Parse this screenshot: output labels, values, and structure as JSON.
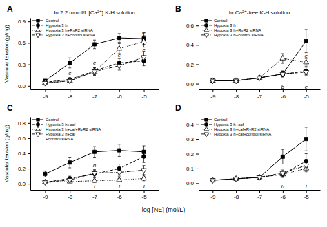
{
  "chart_data": [
    {
      "type": "line",
      "title": "In 2.2 mmol/L [Ca²⁺] K-H solution",
      "ylabel": "Vascular tension (g/mg)",
      "color": "black",
      "x": [
        -9,
        -8,
        -7,
        -6,
        -5
      ],
      "xlim": [
        -9.6,
        -4.4
      ],
      "xticks": [
        -9,
        -8,
        -7,
        -6,
        -5
      ],
      "ylim": [
        -0.05,
        0.95
      ],
      "yticks": [
        {
          "value": 0.0,
          "label": "0.0"
        },
        0.3,
        0.6,
        0.9
      ],
      "grid": false,
      "legend": "top-left",
      "series": [
        {
          "name": "Control",
          "values": [
            0.07,
            0.32,
            0.58,
            0.67,
            0.66
          ],
          "yerr": [
            0.02,
            0.07,
            0.06,
            0.06,
            0.08
          ],
          "marker": "square",
          "line_style": "solid"
        },
        {
          "name": "Hypoxia 3 h",
          "values": [
            0.05,
            0.09,
            0.21,
            0.32,
            0.35
          ],
          "yerr": [
            0.01,
            0.02,
            0.05,
            0.06,
            0.07
          ],
          "marker": "circle",
          "line_style": "dashed"
        },
        {
          "name": "Hypoxia 3 h+RyR2 siRNA",
          "values": [
            0.04,
            0.07,
            0.2,
            0.52,
            0.62
          ],
          "yerr": [
            0.01,
            0.01,
            0.05,
            0.07,
            0.08
          ],
          "marker": "triangle-up-open",
          "line_style": "dotted"
        },
        {
          "name": "Hypoxia 3 h+control siRNA",
          "values": [
            0.04,
            0.07,
            0.2,
            0.28,
            0.4
          ],
          "yerr": [
            0.01,
            0.01,
            0.05,
            0.06,
            0.08
          ],
          "marker": "triangle-down-open",
          "line_style": "dashdot"
        }
      ],
      "annotations": [
        {
          "text": "A"
        },
        {
          "text": "c",
          "xy": [
            -8,
            0.15
          ]
        },
        {
          "text": "c",
          "xy": [
            -7,
            0.3
          ]
        },
        {
          "text": "e",
          "xy": [
            -6,
            0.64
          ]
        },
        {
          "text": "e",
          "xy": [
            -5,
            0.72
          ]
        },
        {
          "text": "c",
          "xy": [
            -6,
            0.4
          ]
        },
        {
          "text": "c",
          "xy": [
            -5,
            0.48
          ]
        }
      ]
    },
    {
      "type": "line",
      "title": "In Ca²⁺-free K-H solution",
      "color": "black",
      "x": [
        -9,
        -8,
        -7,
        -6,
        -5
      ],
      "xlim": [
        -9.6,
        -4.4
      ],
      "xticks": [
        -9,
        -8,
        -7,
        -6,
        -5
      ],
      "ylim": [
        -0.06,
        0.68
      ],
      "yticks": [
        {
          "value": 0.0,
          "label": "0.0"
        },
        0.2,
        0.4,
        0.6
      ],
      "grid": false,
      "legend": "top-left",
      "series": [
        {
          "name": "Control",
          "values": [
            0.03,
            0.03,
            0.06,
            0.1,
            0.44
          ],
          "yerr": [
            0.01,
            0.01,
            0.02,
            0.03,
            0.12
          ],
          "marker": "square",
          "line_style": "solid"
        },
        {
          "name": "Hypoxia 3 h",
          "values": [
            0.03,
            0.03,
            0.06,
            0.1,
            0.13
          ],
          "yerr": [
            0.01,
            0.01,
            0.02,
            0.03,
            0.04
          ],
          "marker": "circle",
          "line_style": "dashed"
        },
        {
          "name": "Hypoxia 3 h+RyR2 siRNA",
          "values": [
            0.03,
            0.03,
            0.06,
            0.26,
            0.22
          ],
          "yerr": [
            0.01,
            0.01,
            0.02,
            0.05,
            0.04
          ],
          "marker": "triangle-up-open",
          "line_style": "dotted"
        },
        {
          "name": "Hypoxia 3 h+control siRNA",
          "values": [
            0.03,
            0.03,
            0.06,
            0.1,
            0.12
          ],
          "yerr": [
            0.01,
            0.01,
            0.02,
            0.03,
            0.03
          ],
          "marker": "triangle-down-open",
          "line_style": "dashdot"
        }
      ],
      "annotations": [
        {
          "text": "B"
        },
        {
          "text": "b",
          "xy": [
            -6,
            -0.05
          ]
        },
        {
          "text": "c",
          "xy": [
            -5,
            -0.05
          ]
        },
        {
          "text": "e",
          "xy": [
            -5,
            0.27
          ]
        }
      ]
    },
    {
      "type": "line",
      "ylabel": "Vascular tension (g/mg)",
      "xlabel": "log [NE] (mol/L)",
      "color": "black",
      "x": [
        -9,
        -8,
        -7,
        -6,
        -5
      ],
      "xlim": [
        -9.6,
        -4.4
      ],
      "xticks": [
        -9,
        -8,
        -7,
        -6,
        -5
      ],
      "ylim": [
        -0.08,
        0.88
      ],
      "yticks": [
        {
          "value": 0.0,
          "label": "0.0"
        },
        0.2,
        0.4,
        0.6,
        0.8
      ],
      "grid": false,
      "legend": "top-left",
      "series": [
        {
          "name": "Control",
          "values": [
            0.13,
            0.28,
            0.42,
            0.44,
            0.42
          ],
          "yerr": [
            0.04,
            0.07,
            0.07,
            0.08,
            0.08
          ],
          "marker": "square",
          "line_style": "solid"
        },
        {
          "name": "Hypoxia 3 h+caf",
          "values": [
            0.02,
            0.07,
            0.13,
            0.2,
            0.36
          ],
          "yerr": [
            0.01,
            0.03,
            0.05,
            0.06,
            0.08
          ],
          "marker": "circle",
          "line_style": "dashed"
        },
        {
          "name": "Hypoxia 3 h+caf+RyR2 siRNA",
          "values": [
            0.02,
            0.03,
            0.04,
            0.05,
            0.07
          ],
          "yerr": [
            0.01,
            0.01,
            0.02,
            0.02,
            0.03
          ],
          "marker": "triangle-up-open",
          "line_style": "dotted"
        },
        {
          "name": "Hypoxia 3 h+caf\n+control siRNA",
          "values": [
            0.02,
            0.05,
            0.14,
            0.15,
            0.18
          ],
          "yerr": [
            0.01,
            0.01,
            0.05,
            0.05,
            0.06
          ],
          "marker": "triangle-down-open",
          "line_style": "dashdot"
        }
      ],
      "annotations": [
        {
          "text": "C"
        },
        {
          "text": "h",
          "xy": [
            -7,
            0.22
          ]
        },
        {
          "text": "l",
          "xy": [
            -7,
            -0.065
          ]
        },
        {
          "text": "l",
          "xy": [
            -6,
            -0.065
          ]
        },
        {
          "text": "l",
          "xy": [
            -5,
            -0.065
          ]
        }
      ]
    },
    {
      "type": "line",
      "color": "black",
      "x": [
        -9,
        -8,
        -7,
        -6,
        -5
      ],
      "xlim": [
        -9.6,
        -4.4
      ],
      "xticks": [
        -9,
        -8,
        -7,
        -6,
        -5
      ],
      "ylim": [
        -0.045,
        0.45
      ],
      "yticks": [
        {
          "value": 0.0,
          "label": "0.0"
        },
        0.1,
        0.2,
        0.3,
        0.4
      ],
      "grid": false,
      "legend": "top-left",
      "series": [
        {
          "name": "Control",
          "values": [
            0.02,
            0.03,
            0.04,
            0.18,
            0.3
          ],
          "yerr": [
            0.01,
            0.01,
            0.01,
            0.05,
            0.08
          ],
          "marker": "square",
          "line_style": "solid"
        },
        {
          "name": "Hypoxia 3 h+caf",
          "values": [
            0.02,
            0.03,
            0.04,
            0.06,
            0.15
          ],
          "yerr": [
            0.01,
            0.01,
            0.01,
            0.02,
            0.05
          ],
          "marker": "circle",
          "line_style": "dashed"
        },
        {
          "name": "Hypoxia 3 h+caf+RyR2 siRNA",
          "values": [
            0.02,
            0.03,
            0.04,
            0.06,
            0.1
          ],
          "yerr": [
            0.01,
            0.01,
            0.01,
            0.02,
            0.03
          ],
          "marker": "triangle-up-open",
          "line_style": "dotted"
        },
        {
          "name": "Hypoxia 3 h+caf+control siRNA",
          "values": [
            0.02,
            0.03,
            0.04,
            0.07,
            0.12
          ],
          "yerr": [
            0.01,
            0.01,
            0.01,
            0.02,
            0.04
          ],
          "marker": "triangle-down-open",
          "line_style": "dashdot"
        }
      ],
      "annotations": [
        {
          "text": "D"
        },
        {
          "text": "h",
          "xy": [
            -6,
            -0.035
          ]
        },
        {
          "text": "l",
          "xy": [
            -5,
            -0.035
          ]
        }
      ]
    }
  ]
}
